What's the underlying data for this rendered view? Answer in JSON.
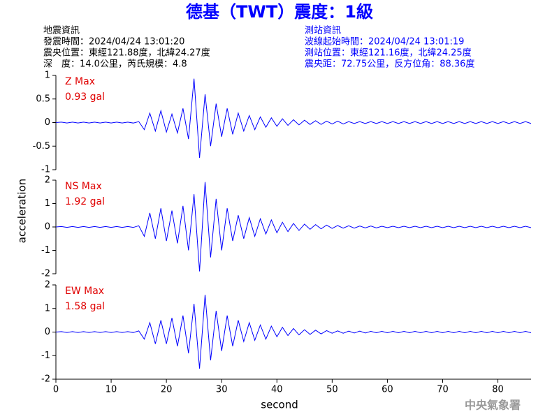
{
  "header": {
    "title": "德基（TWT）震度：1級",
    "left": [
      "地震資訊",
      "發震時間：2024/04/24 13:01:20",
      "震央位置：東經121.88度，北緯24.27度",
      "深　度：14.0公里，芮氏規模：4.8"
    ],
    "right": [
      "測站資訊",
      "波線起始時間：2024/04/24 13:01:19",
      "測站位置：東經121.16度，北緯24.25度",
      "震央距：72.75公里，反方位角：88.36度"
    ]
  },
  "footer": "中央氣象署",
  "chart_data": {
    "type": "line",
    "xlabel": "second",
    "ylabel": "acceleration",
    "xlim": [
      0,
      86
    ],
    "xticks": [
      0,
      10,
      20,
      30,
      40,
      50,
      60,
      70,
      80
    ],
    "x": [
      0,
      1,
      2,
      3,
      4,
      5,
      6,
      7,
      8,
      9,
      10,
      11,
      12,
      13,
      14,
      15,
      16,
      17,
      18,
      19,
      20,
      21,
      22,
      23,
      24,
      25,
      26,
      27,
      28,
      29,
      30,
      31,
      32,
      33,
      34,
      35,
      36,
      37,
      38,
      39,
      40,
      41,
      42,
      43,
      44,
      45,
      46,
      47,
      48,
      49,
      50,
      51,
      52,
      53,
      54,
      55,
      56,
      57,
      58,
      59,
      60,
      61,
      62,
      63,
      64,
      65,
      66,
      67,
      68,
      69,
      70,
      71,
      72,
      73,
      74,
      75,
      76,
      77,
      78,
      79,
      80,
      81,
      82,
      83,
      84,
      85,
      86
    ],
    "series": [
      {
        "name": "Z Max",
        "max_label": "0.93 gal",
        "color": "#0000ff",
        "ylim": [
          -1,
          1
        ],
        "yticks": [
          1,
          0.5,
          0,
          -0.5,
          -1
        ],
        "values": [
          0,
          0.01,
          -0.01,
          0.01,
          -0.01,
          0.01,
          -0.01,
          0.01,
          -0.01,
          0.01,
          -0.01,
          0.01,
          -0.01,
          0.01,
          -0.01,
          0.02,
          -0.15,
          0.2,
          -0.18,
          0.25,
          -0.2,
          0.18,
          -0.22,
          0.3,
          -0.35,
          0.93,
          -0.75,
          0.6,
          -0.5,
          0.4,
          -0.3,
          0.3,
          -0.25,
          0.2,
          -0.18,
          0.15,
          -0.15,
          0.12,
          -0.1,
          0.1,
          -0.08,
          0.08,
          -0.06,
          0.06,
          -0.05,
          0.05,
          -0.04,
          0.04,
          -0.04,
          0.03,
          -0.03,
          0.03,
          -0.03,
          0.02,
          -0.02,
          0.02,
          -0.02,
          0.02,
          -0.02,
          0.02,
          -0.02,
          0.02,
          -0.02,
          0.02,
          -0.02,
          0.02,
          -0.02,
          0.02,
          -0.02,
          0.02,
          -0.02,
          0.02,
          -0.02,
          0.02,
          -0.02,
          0.02,
          -0.02,
          0.02,
          -0.02,
          0.02,
          -0.02,
          0.02,
          -0.02,
          0.02,
          -0.02,
          0.02,
          -0.02
        ]
      },
      {
        "name": "NS Max",
        "max_label": "1.92 gal",
        "color": "#0000ff",
        "ylim": [
          -2,
          2
        ],
        "yticks": [
          2,
          1,
          0,
          -1,
          -2
        ],
        "values": [
          0,
          0.02,
          -0.02,
          0.02,
          -0.02,
          0.02,
          -0.02,
          0.02,
          -0.02,
          0.02,
          -0.02,
          0.02,
          -0.02,
          0.02,
          -0.02,
          0.05,
          -0.4,
          0.6,
          -0.5,
          0.8,
          -0.6,
          0.7,
          -0.7,
          0.9,
          -1.0,
          1.4,
          -1.9,
          1.92,
          -1.3,
          1.2,
          -1.0,
          0.8,
          -0.6,
          0.5,
          -0.5,
          0.4,
          -0.4,
          0.35,
          -0.3,
          0.3,
          -0.25,
          0.2,
          -0.2,
          0.15,
          -0.15,
          0.12,
          -0.1,
          0.1,
          -0.08,
          0.08,
          -0.06,
          0.06,
          -0.05,
          0.05,
          -0.05,
          0.04,
          -0.04,
          0.04,
          -0.04,
          0.03,
          -0.03,
          0.03,
          -0.03,
          0.03,
          -0.03,
          0.03,
          -0.03,
          0.03,
          -0.03,
          0.03,
          -0.03,
          0.03,
          -0.03,
          0.03,
          -0.03,
          0.03,
          -0.03,
          0.03,
          -0.03,
          0.03,
          -0.03,
          0.03,
          -0.03,
          0.03,
          -0.03,
          0.03,
          -0.03
        ]
      },
      {
        "name": "EW Max",
        "max_label": "1.58 gal",
        "color": "#0000ff",
        "ylim": [
          -2,
          2
        ],
        "yticks": [
          2,
          1,
          0,
          -1,
          -2
        ],
        "values": [
          0,
          0.02,
          -0.02,
          0.02,
          -0.02,
          0.02,
          -0.02,
          0.02,
          -0.02,
          0.02,
          -0.02,
          0.02,
          -0.02,
          0.02,
          -0.02,
          0.05,
          -0.3,
          0.4,
          -0.5,
          0.5,
          -0.5,
          0.6,
          -0.6,
          0.7,
          -0.9,
          1.2,
          -1.55,
          1.58,
          -1.2,
          0.9,
          -0.8,
          0.7,
          -0.6,
          0.5,
          -0.4,
          0.4,
          -0.35,
          0.3,
          -0.3,
          0.25,
          -0.2,
          0.2,
          -0.15,
          0.15,
          -0.12,
          0.1,
          -0.1,
          0.08,
          -0.08,
          0.06,
          -0.05,
          0.05,
          -0.05,
          0.04,
          -0.04,
          0.04,
          -0.04,
          0.03,
          -0.03,
          0.03,
          -0.03,
          0.03,
          -0.03,
          0.03,
          -0.03,
          0.03,
          -0.03,
          0.03,
          -0.03,
          0.03,
          -0.03,
          0.03,
          -0.03,
          0.03,
          -0.03,
          0.03,
          -0.03,
          0.03,
          -0.03,
          0.03,
          -0.03,
          0.03,
          -0.03,
          0.03,
          -0.03,
          0.03,
          -0.03
        ]
      }
    ]
  }
}
